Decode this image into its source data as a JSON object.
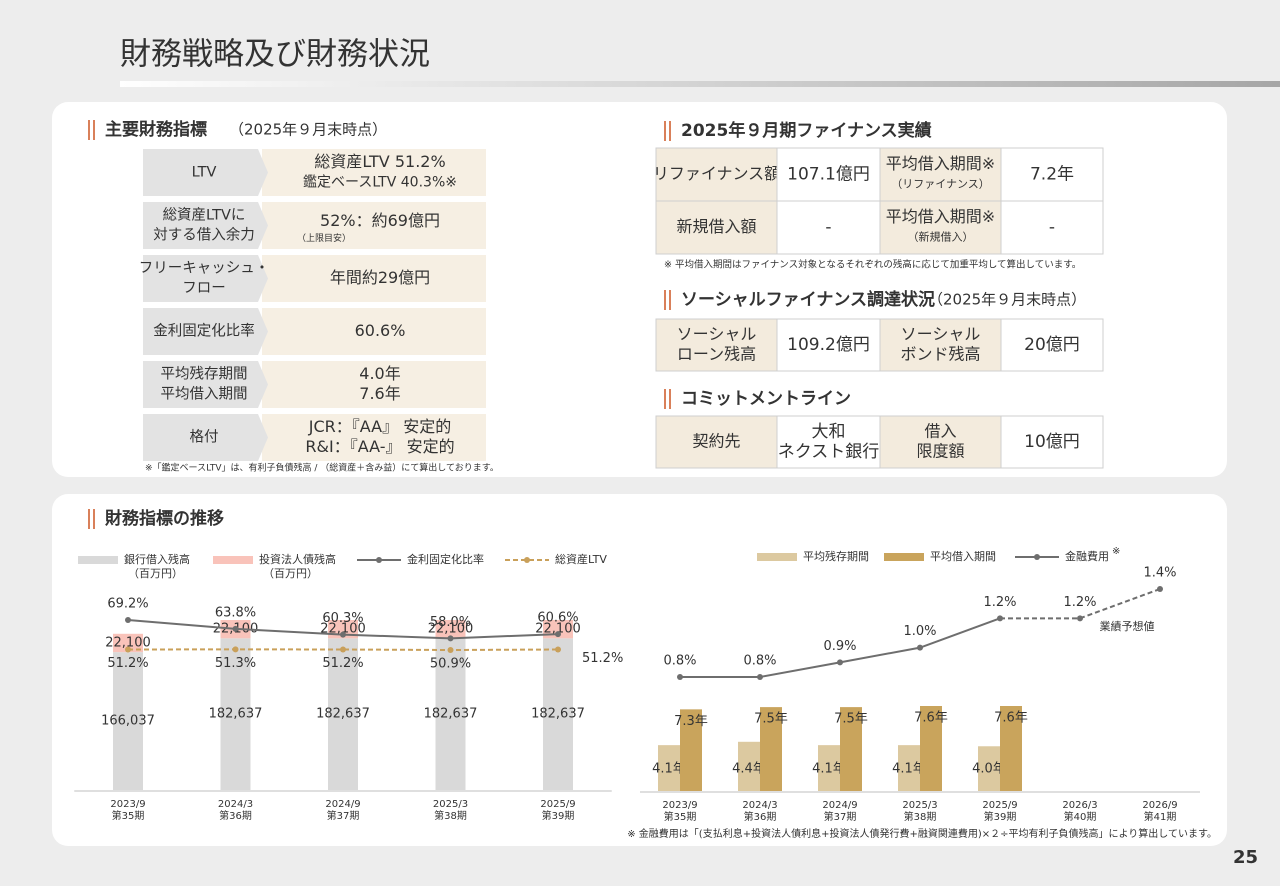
{
  "title": "財務戦略及び財務状況",
  "page_number": "25",
  "key_indicators": {
    "heading": "主要財務指標",
    "heading_note": "（2025年９月末時点）",
    "rows": [
      {
        "label": [
          "LTV"
        ],
        "value": [
          "総資産LTV 51.2%",
          "鑑定ベースLTV 40.3%※"
        ]
      },
      {
        "label": [
          "総資産LTVに",
          "対する借入余力"
        ],
        "value": [
          "52%：約69億円"
        ],
        "value_note": "（上限目安）"
      },
      {
        "label": [
          "フリーキャッシュ・",
          "フロー"
        ],
        "value": [
          "年間約29億円"
        ]
      },
      {
        "label": [
          "金利固定化比率"
        ],
        "value": [
          "60.6%"
        ]
      },
      {
        "label": [
          "平均残存期間",
          "平均借入期間"
        ],
        "value": [
          "4.0年",
          "7.6年"
        ]
      },
      {
        "label": [
          "格付"
        ],
        "value": [
          "JCR：『AA』 安定的",
          "R&I：『AA-』 安定的"
        ]
      }
    ],
    "note": "※「鑑定ベースLTV」は、有利子負債残高 / （総資産＋含み益）にて算出しております。"
  },
  "finance_results": {
    "heading": "2025年９月期ファイナンス実績",
    "rows": [
      [
        [
          "リファイナンス額"
        ],
        [
          "107.1億円"
        ],
        {
          "lines": [
            "平均借入期間※"
          ],
          "sub": "（リファイナンス）"
        },
        [
          "7.2年"
        ]
      ],
      [
        [
          "新規借入額"
        ],
        [
          "-"
        ],
        {
          "lines": [
            "平均借入期間※"
          ],
          "sub": "（新規借入）"
        },
        [
          "-"
        ]
      ]
    ],
    "note": "※ 平均借入期間はファイナンス対象となるそれぞれの残高に応じて加重平均して算出しています。"
  },
  "social_finance": {
    "heading": "ソーシャルファイナンス調達状況",
    "heading_note": "（2025年９月末時点）",
    "rows": [
      [
        [
          "ソーシャル",
          "ローン残高"
        ],
        [
          "109.2億円"
        ],
        [
          "ソーシャル",
          "ボンド残高"
        ],
        [
          "20億円"
        ]
      ]
    ]
  },
  "commitment_line": {
    "heading": "コミットメントライン",
    "rows": [
      [
        [
          "契約先"
        ],
        [
          "大和",
          "ネクスト銀行"
        ],
        [
          "借入",
          "限度額"
        ],
        [
          "10億円"
        ]
      ]
    ]
  },
  "trend": {
    "heading": "財務指標の推移"
  },
  "chart_data": [
    {
      "type": "bar",
      "stacked": true,
      "categories": [
        "2023/9",
        "2024/3",
        "2024/9",
        "2025/3",
        "2025/9"
      ],
      "category_periods": [
        "第35期",
        "第36期",
        "第37期",
        "第38期",
        "第39期"
      ],
      "series": [
        {
          "name": "銀行借入残高",
          "unit": "（百万円）",
          "type": "bar",
          "color": "#d9d9d9",
          "values": [
            166037,
            182637,
            182637,
            182637,
            182637
          ],
          "value_labels": [
            "166,037",
            "182,637",
            "182,637",
            "182,637",
            "182,637"
          ]
        },
        {
          "name": "投資法人債残高",
          "unit": "（百万円）",
          "type": "bar",
          "color": "#f9c3ba",
          "values": [
            22100,
            22100,
            22100,
            22100,
            22100
          ],
          "value_labels": [
            "22,100",
            "22,100",
            "22,100",
            "22,100",
            "22,100"
          ]
        },
        {
          "name": "金利固定化比率",
          "type": "line",
          "color": "#6e6e6e",
          "values": [
            69.2,
            63.8,
            60.3,
            58.0,
            60.6
          ],
          "value_labels": [
            "69.2%",
            "63.8%",
            "60.3%",
            "58.0%",
            "60.6%"
          ]
        },
        {
          "name": "総資産LTV",
          "type": "line",
          "dashed": true,
          "color": "#c9a05a",
          "values": [
            51.2,
            51.3,
            51.2,
            50.9,
            51.2
          ],
          "value_labels": [
            "51.2%",
            "51.3%",
            "51.2%",
            "50.9%",
            "51.2%"
          ]
        }
      ]
    },
    {
      "type": "bar",
      "stacked": false,
      "categories": [
        "2023/9",
        "2024/3",
        "2024/9",
        "2025/3",
        "2025/9",
        "2026/3",
        "2026/9"
      ],
      "category_periods": [
        "第35期",
        "第36期",
        "第37期",
        "第38期",
        "第39期",
        "第40期",
        "第41期"
      ],
      "series": [
        {
          "name": "平均残存期間",
          "type": "bar",
          "color": "#dcc9a0",
          "values": [
            4.1,
            4.4,
            4.1,
            4.1,
            4.0,
            null,
            null
          ],
          "value_labels": [
            "4.1年",
            "4.4年",
            "4.1年",
            "4.1年",
            "4.0年",
            null,
            null
          ]
        },
        {
          "name": "平均借入期間",
          "type": "bar",
          "color": "#c9a45c",
          "values": [
            7.3,
            7.5,
            7.5,
            7.6,
            7.6,
            null,
            null
          ],
          "value_labels": [
            "7.3年",
            "7.5年",
            "7.5年",
            "7.6年",
            "7.6年",
            null,
            null
          ]
        },
        {
          "name": "金融費用",
          "name_mark": "※",
          "type": "line",
          "color": "#6e6e6e",
          "dashed_from": 4,
          "values": [
            0.8,
            0.8,
            0.9,
            1.0,
            1.2,
            1.2,
            1.4
          ],
          "value_labels": [
            "0.8%",
            "0.8%",
            "0.9%",
            "1.0%",
            "1.2%",
            "1.2%",
            "1.4%"
          ]
        }
      ],
      "annotation": "業績予想値",
      "note": "※ 金融費用は「(支払利息+投資法人債利息+投資法人債発行費+融資関連費用)×２÷平均有利子負債残高」により算出しています。"
    }
  ]
}
